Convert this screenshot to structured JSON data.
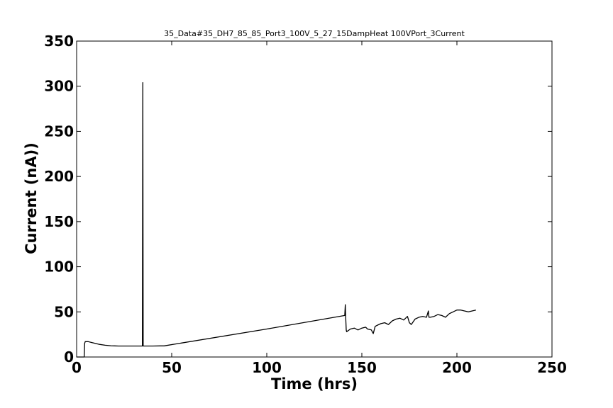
{
  "chart_data": {
    "type": "line",
    "title": "35_Data#35_DH7_85_85_Port3_100V_5_27_15DampHeat 100VPort_3Current",
    "xlabel": "Time (hrs)",
    "ylabel": "Current (nA))",
    "xlim": [
      0,
      250
    ],
    "ylim": [
      0,
      350
    ],
    "xticks": [
      "0",
      "50",
      "100",
      "150",
      "200",
      "250"
    ],
    "yticks": [
      "0",
      "50",
      "100",
      "150",
      "200",
      "250",
      "300",
      "350"
    ],
    "grid": false,
    "series": [
      {
        "color": "#000000",
        "x": [
          0,
          4,
          4.2,
          4.5,
          6,
          8,
          10,
          12,
          15,
          18,
          20,
          22,
          25,
          28,
          30,
          32,
          34,
          34.6,
          34.8,
          35,
          36,
          40,
          44,
          46,
          100,
          141,
          141.3,
          141.5,
          141.8,
          142,
          144,
          146,
          148,
          150,
          152,
          153,
          155,
          156,
          157,
          158,
          160,
          162,
          164,
          166,
          168,
          170,
          172,
          174,
          175,
          176,
          178,
          180,
          182,
          184,
          185,
          185.3,
          186,
          188,
          190,
          192,
          194,
          196,
          198,
          200,
          202,
          204,
          206,
          208,
          210
        ],
        "y": [
          0,
          0,
          15,
          17,
          17,
          16,
          15,
          14,
          13,
          12.5,
          12.3,
          12.2,
          12.2,
          12.2,
          12.2,
          12.2,
          12.2,
          12.2,
          304,
          12.2,
          12.2,
          12.2,
          12.3,
          12.3,
          31,
          46,
          58,
          45,
          30,
          28,
          31,
          32,
          30,
          32,
          33,
          31,
          30,
          26,
          34,
          35,
          37,
          38,
          36,
          40,
          42,
          43,
          41,
          45,
          38,
          36,
          42,
          44,
          45,
          44,
          51,
          44,
          44,
          45,
          47,
          46,
          44,
          48,
          50,
          52,
          52,
          51,
          50,
          51,
          52
        ]
      }
    ]
  }
}
